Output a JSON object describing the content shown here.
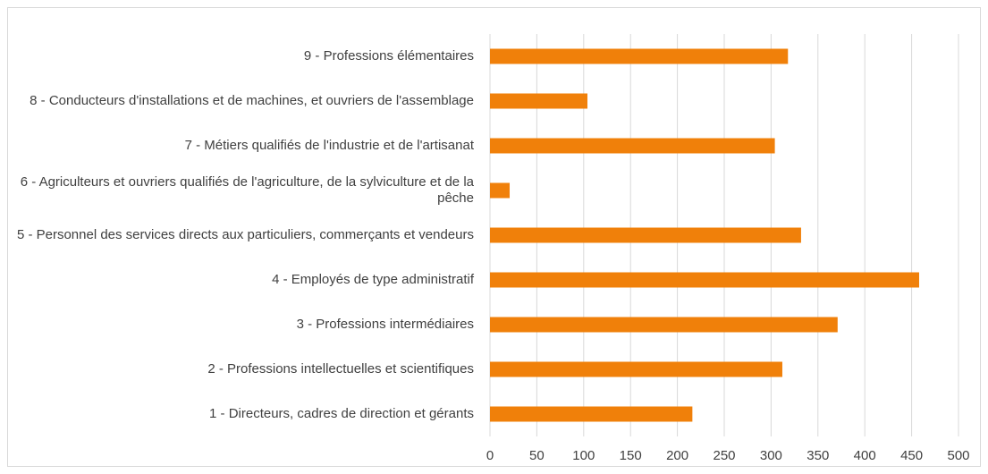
{
  "chart_data": {
    "type": "bar",
    "orientation": "horizontal",
    "categories": [
      "1 - Directeurs, cadres de direction et gérants",
      "2 - Professions intellectuelles et scientifiques",
      "3 - Professions intermédiaires",
      "4 - Employés de type administratif",
      "5 - Personnel des services directs aux particuliers, commerçants et vendeurs",
      "6 - Agriculteurs et ouvriers qualifiés de l'agriculture, de la sylviculture et de la pêche",
      "7 - Métiers qualifiés de l'industrie et de l'artisanat",
      "8 - Conducteurs d'installations et de machines, et ouvriers de l'assemblage",
      "9 - Professions élémentaires"
    ],
    "values": [
      216,
      312,
      371,
      458,
      332,
      21,
      304,
      104,
      318
    ],
    "color": "#f0800a",
    "xlim": [
      0,
      500
    ],
    "xticks": [
      0,
      50,
      100,
      150,
      200,
      250,
      300,
      350,
      400,
      450,
      500
    ],
    "grid": true
  }
}
